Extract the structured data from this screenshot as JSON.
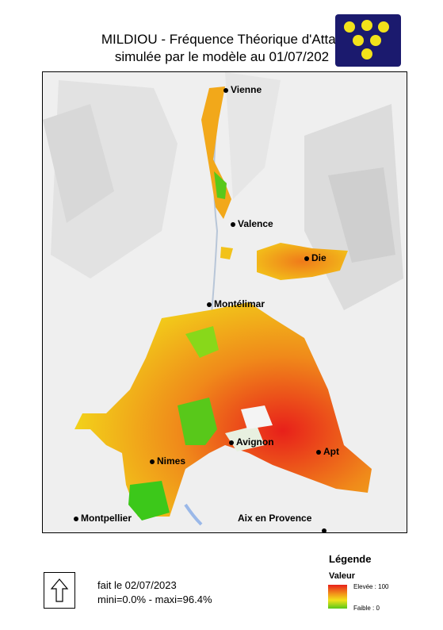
{
  "title": {
    "line1": "MILDIOU - Fréquence Théorique d'Attac",
    "line2": "simulée par le modèle au 01/07/202"
  },
  "cities": [
    {
      "name": "Vienne"
    },
    {
      "name": "Valence"
    },
    {
      "name": "Die"
    },
    {
      "name": "Montélimar"
    },
    {
      "name": "Avignon"
    },
    {
      "name": "Nimes"
    },
    {
      "name": "Apt"
    },
    {
      "name": "Montpellier"
    },
    {
      "name": "Aix en Provence"
    }
  ],
  "legend": {
    "title": "Légende",
    "subtitle": "Valeur",
    "high_label": "Elevée : 100",
    "low_label": "Faible : 0",
    "colors": [
      "#e8201a",
      "#f29a1a",
      "#f2e21a",
      "#58c81a"
    ]
  },
  "footer": {
    "date_line": "fait le 02/07/2023",
    "stats_line": "mini=0.0%   -   maxi=96.4%"
  },
  "logo": {
    "background": "#1b1a6e",
    "grape_color": "#f2e21a"
  }
}
